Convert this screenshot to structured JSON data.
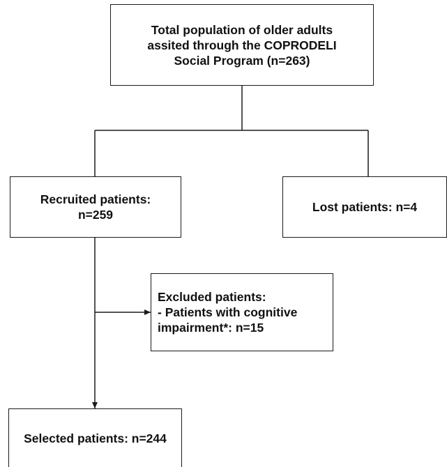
{
  "boxes": {
    "total": {
      "lines": [
        "Total population of older adults",
        "assited through the COPRODELI",
        "Social Program (n=263)"
      ]
    },
    "recruited": {
      "lines": [
        "Recruited patients:",
        "n=259"
      ]
    },
    "lost": {
      "lines": [
        "Lost patients: n=4"
      ]
    },
    "excluded": {
      "lines": [
        "Excluded patients:",
        "- Patients with cognitive",
        "impairment*: n=15"
      ]
    },
    "selected": {
      "lines": [
        "Selected patients: n=244"
      ]
    }
  },
  "colors": {
    "line": "#1a1a1a",
    "text": "#111111",
    "background": "#ffffff"
  }
}
